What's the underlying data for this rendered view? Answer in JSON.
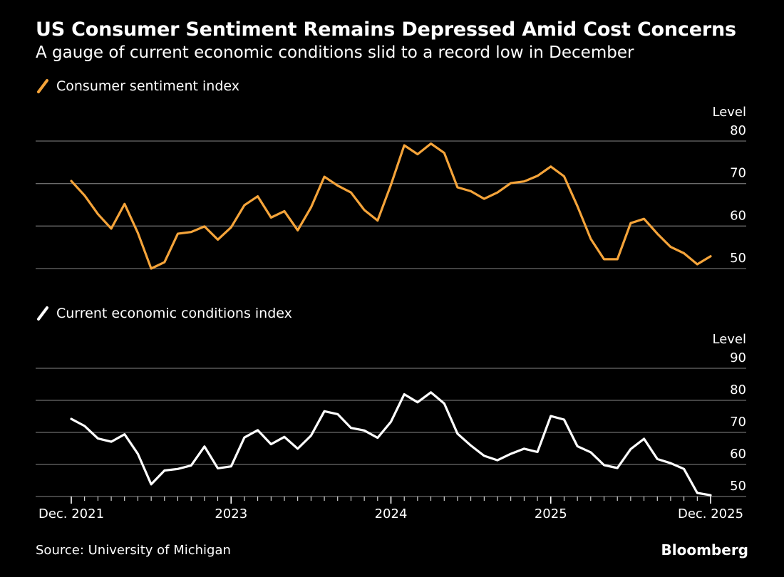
{
  "header": {
    "title": "US Consumer Sentiment Remains Depressed Amid Cost Concerns",
    "subtitle": "A gauge of current economic conditions slid to a record low in December"
  },
  "footer": {
    "source": "Source: University of Michigan",
    "brand": "Bloomberg"
  },
  "colors": {
    "sentiment": "#f5a43a",
    "conditions": "#ffffff",
    "grid": "#6b6b6b",
    "background": "#000000"
  },
  "chart_data": [
    {
      "type": "line",
      "legend": "Consumer sentiment index",
      "unit_label": "Level",
      "ylim": [
        47,
        83
      ],
      "yticks": [
        50,
        60,
        70,
        80
      ],
      "ytick_labels": [
        "50",
        "60",
        "70",
        "80"
      ],
      "gridlines": [
        50,
        60,
        70,
        80
      ],
      "x": [
        "Dec. 2021",
        "Jan. 2022",
        "Feb. 2022",
        "Mar. 2022",
        "Apr. 2022",
        "May 2022",
        "Jun. 2022",
        "Jul. 2022",
        "Aug. 2022",
        "Sep. 2022",
        "Oct. 2022",
        "Nov. 2022",
        "Dec. 2022",
        "Jan. 2023",
        "Feb. 2023",
        "Mar. 2023",
        "Apr. 2023",
        "May 2023",
        "Jun. 2023",
        "Jul. 2023",
        "Aug. 2023",
        "Sep. 2023",
        "Oct. 2023",
        "Nov. 2023",
        "Dec. 2023",
        "Jan. 2024",
        "Feb. 2024",
        "Mar. 2024",
        "Apr. 2024",
        "May 2024",
        "Jun. 2024",
        "Jul. 2024",
        "Aug. 2024",
        "Sep. 2024",
        "Oct. 2024",
        "Nov. 2024",
        "Dec. 2024",
        "Jan. 2025",
        "Feb. 2025",
        "Mar. 2025",
        "Apr. 2025",
        "May 2025",
        "Jun. 2025",
        "Jul. 2025",
        "Aug. 2025",
        "Sep. 2025",
        "Oct. 2025",
        "Nov. 2025",
        "Dec. 2025"
      ],
      "values": [
        70.6,
        67.2,
        62.8,
        59.4,
        65.2,
        58.4,
        50.0,
        51.5,
        58.2,
        58.6,
        59.9,
        56.8,
        59.7,
        64.9,
        67.0,
        62.0,
        63.5,
        59.0,
        64.4,
        71.6,
        69.5,
        67.9,
        63.8,
        61.3,
        69.7,
        79.0,
        76.9,
        79.4,
        77.2,
        69.1,
        68.2,
        66.4,
        67.9,
        70.1,
        70.5,
        71.8,
        74.0,
        71.7,
        64.7,
        57.0,
        52.2,
        52.2,
        60.7,
        61.7,
        58.2,
        55.1,
        53.6,
        51.0,
        52.9
      ]
    },
    {
      "type": "line",
      "legend": "Current economic conditions index",
      "unit_label": "Level",
      "ylim": [
        50,
        90
      ],
      "yticks": [
        50,
        60,
        70,
        80,
        90
      ],
      "ytick_labels": [
        "50",
        "60",
        "70",
        "80",
        "90"
      ],
      "gridlines": [
        50,
        60,
        70,
        80,
        90
      ],
      "x": [
        "Dec. 2021",
        "Jan. 2022",
        "Feb. 2022",
        "Mar. 2022",
        "Apr. 2022",
        "May 2022",
        "Jun. 2022",
        "Jul. 2022",
        "Aug. 2022",
        "Sep. 2022",
        "Oct. 2022",
        "Nov. 2022",
        "Dec. 2022",
        "Jan. 2023",
        "Feb. 2023",
        "Mar. 2023",
        "Apr. 2023",
        "May 2023",
        "Jun. 2023",
        "Jul. 2023",
        "Aug. 2023",
        "Sep. 2023",
        "Oct. 2023",
        "Nov. 2023",
        "Dec. 2023",
        "Jan. 2024",
        "Feb. 2024",
        "Mar. 2024",
        "Apr. 2024",
        "May 2024",
        "Jun. 2024",
        "Jul. 2024",
        "Aug. 2024",
        "Sep. 2024",
        "Oct. 2024",
        "Nov. 2024",
        "Dec. 2024",
        "Jan. 2025",
        "Feb. 2025",
        "Mar. 2025",
        "Apr. 2025",
        "May 2025",
        "Jun. 2025",
        "Jul. 2025",
        "Aug. 2025",
        "Sep. 2025",
        "Oct. 2025",
        "Nov. 2025",
        "Dec. 2025"
      ],
      "values": [
        74.2,
        72.0,
        68.1,
        67.1,
        69.4,
        63.3,
        53.8,
        58.1,
        58.6,
        59.7,
        65.6,
        58.8,
        59.4,
        68.4,
        70.7,
        66.3,
        68.6,
        64.9,
        69.0,
        76.6,
        75.7,
        71.4,
        70.6,
        68.3,
        73.3,
        81.9,
        79.4,
        82.5,
        79.0,
        69.6,
        65.9,
        62.7,
        61.3,
        63.3,
        64.9,
        63.9,
        75.1,
        74.0,
        65.7,
        63.8,
        59.8,
        58.9,
        64.8,
        68.0,
        61.7,
        60.4,
        58.6,
        51.1,
        50.4
      ]
    }
  ],
  "x_axis": {
    "tick_positions": [
      0,
      12,
      24,
      36,
      48
    ],
    "tick_labels": [
      "Dec. 2021",
      "2023",
      "2024",
      "2025",
      "Dec. 2025"
    ]
  }
}
